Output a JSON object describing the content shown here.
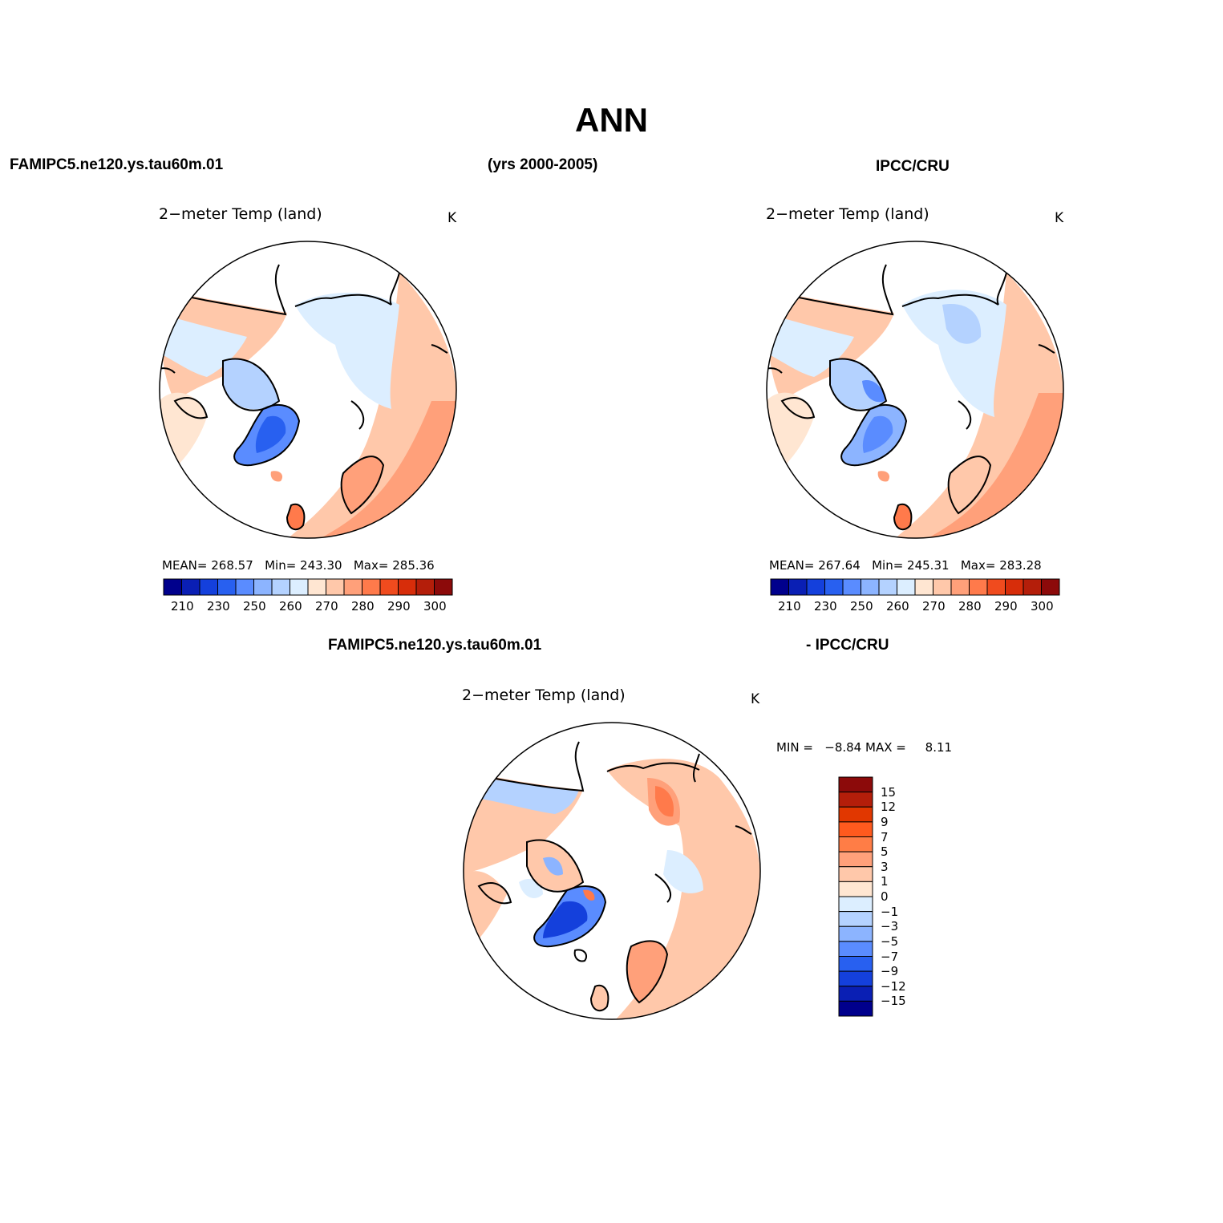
{
  "title": "ANN",
  "header": {
    "case_name": "FAMIPC5.ne120.ys.tau60m.01",
    "years": "(yrs 2000-2005)",
    "obs_name": "IPCC/CRU"
  },
  "diff_header": {
    "case_name": "FAMIPC5.ne120.ys.tau60m.01",
    "obs_name": "- IPCC/CRU"
  },
  "panels": {
    "model": {
      "title": "2−meter Temp (land)",
      "unit": "K",
      "mean_label": "MEAN=",
      "mean": "268.57",
      "min_label": "Min=",
      "min": "243.30",
      "max_label": "Max=",
      "max": "285.36"
    },
    "obs": {
      "title": "2−meter Temp (land)",
      "unit": "K",
      "mean_label": "MEAN=",
      "mean": "267.64",
      "min_label": "Min=",
      "min": "245.31",
      "max_label": "Max=",
      "max": "283.28"
    },
    "diff": {
      "title": "2−meter Temp (land)",
      "unit": "K",
      "min_label": "MIN =",
      "min": "−8.84",
      "max_label": "MAX =",
      "max": "8.11"
    }
  },
  "colorbar_abs": {
    "colors": [
      "#00008c",
      "#0a1fb4",
      "#1440dc",
      "#2860f0",
      "#5a8cff",
      "#8cb4ff",
      "#b4d2ff",
      "#dceeff",
      "#ffe6d2",
      "#ffc8aa",
      "#ffa07a",
      "#ff7a4b",
      "#f04b1e",
      "#d72d0a",
      "#b41e0a",
      "#8c0a0a"
    ],
    "tick_labels": [
      "210",
      "230",
      "250",
      "260",
      "270",
      "280",
      "290",
      "300"
    ]
  },
  "colorbar_diff": {
    "colors_top_to_bottom": [
      "#8c0a0a",
      "#b41e0a",
      "#e13700",
      "#ff5a1e",
      "#ff7d46",
      "#ffa07a",
      "#ffc8aa",
      "#ffe6d2",
      "#dceeff",
      "#b4d2ff",
      "#8cb4ff",
      "#5a8cff",
      "#2860f0",
      "#1440dc",
      "#0a1fb4",
      "#00008c"
    ],
    "tick_labels": [
      "15",
      "12",
      "9",
      "7",
      "5",
      "3",
      "1",
      "0",
      "−1",
      "−3",
      "−5",
      "−7",
      "−9",
      "−12",
      "−15"
    ]
  }
}
